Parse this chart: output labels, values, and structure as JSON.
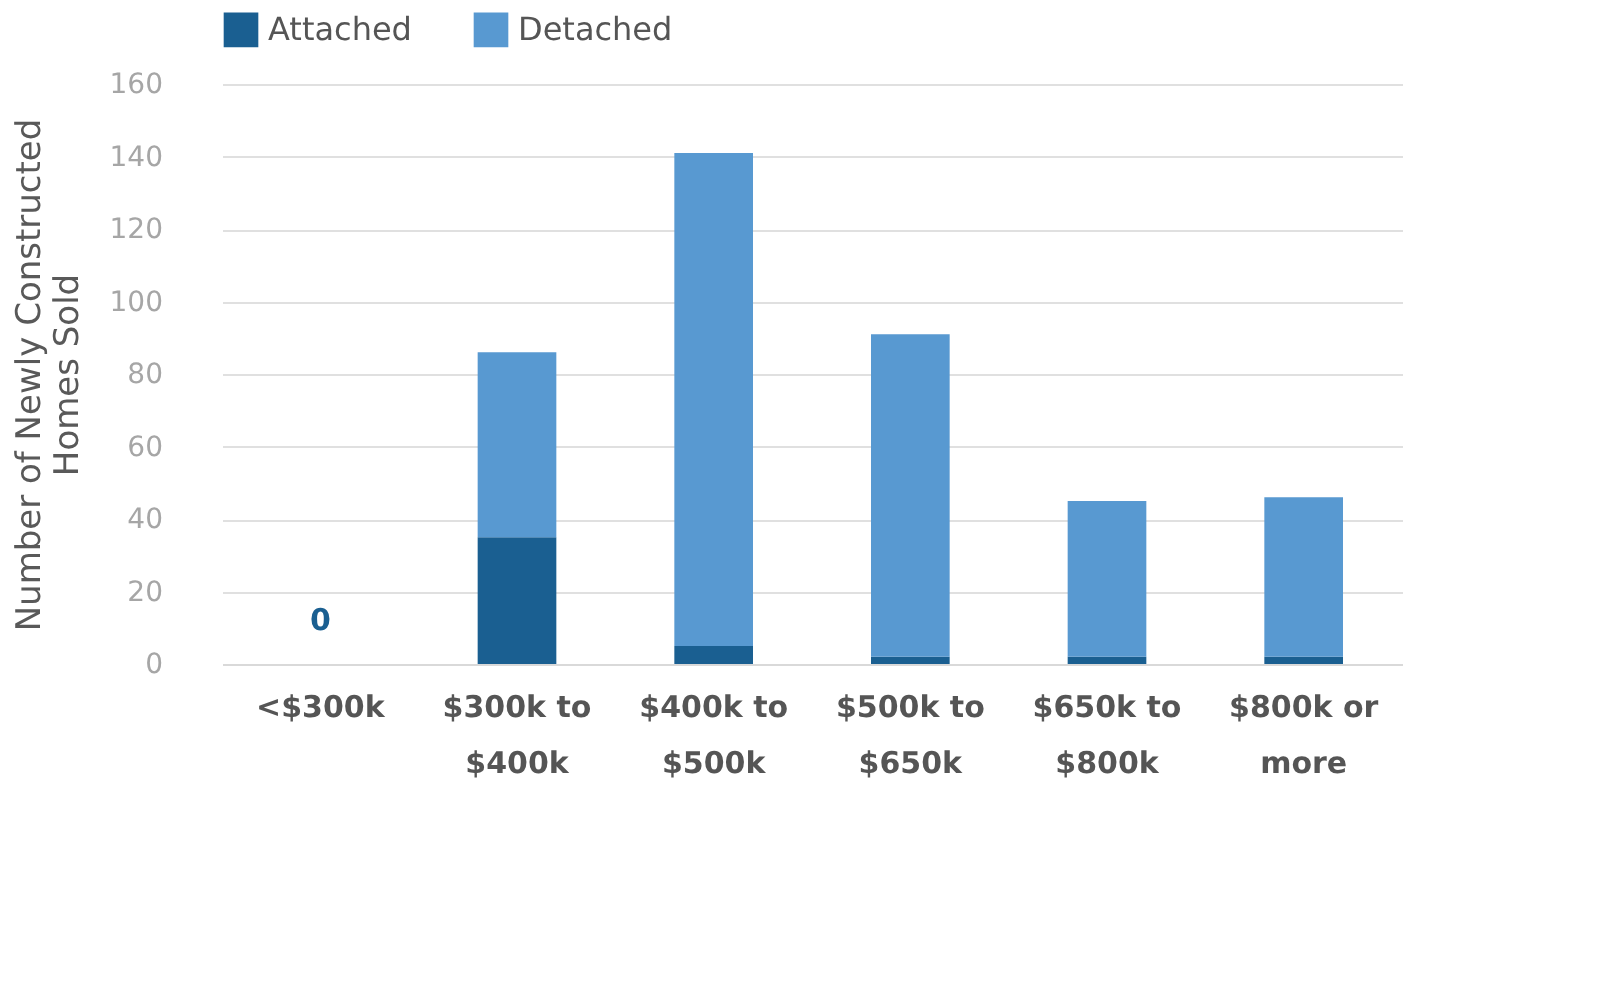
{
  "chart_data": {
    "type": "bar",
    "stacked": true,
    "ylabel": "Number of Newly Constructed Homes Sold",
    "categories": [
      "<$300k",
      "$300k to $400k",
      "$400k to $500k",
      "$500k to $650k",
      "$650k to $800k",
      "$800k or more"
    ],
    "series": [
      {
        "name": "Attached",
        "color": "#1a5f91",
        "values": [
          0,
          35,
          5,
          2,
          2,
          2
        ],
        "value_labels": [
          "0",
          null,
          null,
          null,
          null,
          null
        ]
      },
      {
        "name": "Detached",
        "color": "#5899d1",
        "values": [
          0,
          51,
          136,
          89,
          43,
          44
        ]
      }
    ],
    "ylim": [
      0,
      160
    ],
    "yticks": [
      0,
      20,
      40,
      60,
      80,
      100,
      120,
      140,
      160
    ],
    "grid": "y",
    "legend": "top"
  }
}
